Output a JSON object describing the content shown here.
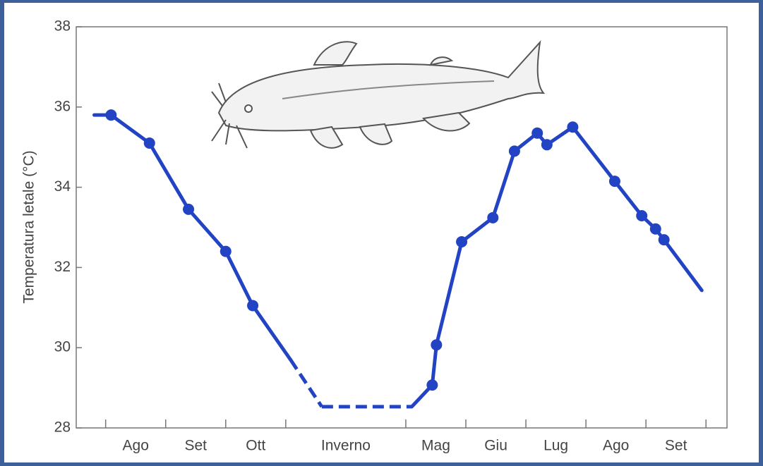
{
  "chart_data": {
    "type": "line",
    "y_label": "Temperatura letale (°C)",
    "x": [
      -0.19,
      0.09,
      0.73,
      1.38,
      2.0,
      2.45,
      3.08,
      3.6,
      5.1,
      5.44,
      5.51,
      5.93,
      6.45,
      6.81,
      7.19,
      7.35,
      7.78,
      8.48,
      8.93,
      9.16,
      9.3,
      9.93
    ],
    "series": [
      {
        "color": "#2143c4",
        "values": [
          35.8,
          35.8,
          35.1,
          33.45,
          32.4,
          31.05,
          29.7,
          28.53,
          28.53,
          29.07,
          30.07,
          32.64,
          33.24,
          34.9,
          35.35,
          35.06,
          35.5,
          34.15,
          33.29,
          32.96,
          32.69,
          31.43
        ],
        "markers": [
          false,
          true,
          true,
          true,
          true,
          true,
          false,
          false,
          false,
          true,
          true,
          true,
          true,
          true,
          true,
          true,
          true,
          true,
          true,
          true,
          true,
          false
        ],
        "dashed_segments": [
          false,
          false,
          false,
          false,
          false,
          false,
          true,
          true,
          false,
          false,
          false,
          false,
          false,
          false,
          false,
          false,
          false,
          false,
          false,
          false,
          false
        ]
      }
    ],
    "xlim": [
      -0.49,
      10.35
    ],
    "xticks": [
      0,
      1,
      2,
      3,
      5,
      6,
      7,
      8,
      9,
      10
    ],
    "x_labels": [
      {
        "value": 0.5,
        "label": "Ago"
      },
      {
        "value": 1.5,
        "label": "Set"
      },
      {
        "value": 2.5,
        "label": "Ott"
      },
      {
        "value": 4,
        "label": "Inverno"
      },
      {
        "value": 5.5,
        "label": "Mag"
      },
      {
        "value": 6.5,
        "label": "Giu"
      },
      {
        "value": 7.5,
        "label": "Lug"
      },
      {
        "value": 8.5,
        "label": "Ago"
      },
      {
        "value": 9.5,
        "label": "Set"
      }
    ],
    "ylim": [
      28,
      38
    ],
    "yticks": [
      28,
      30,
      32,
      34,
      36,
      38
    ]
  }
}
